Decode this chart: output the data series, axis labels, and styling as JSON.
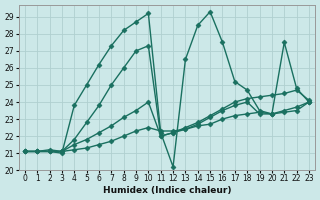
{
  "xlabel": "Humidex (Indice chaleur)",
  "bg_color": "#cce8e8",
  "grid_color": "#b0d0d0",
  "line_color": "#1a7060",
  "marker": "D",
  "markersize": 2.5,
  "linewidth": 1.0,
  "xlim": [
    -0.5,
    23.5
  ],
  "ylim": [
    20.0,
    29.7
  ],
  "yticks": [
    20,
    21,
    22,
    23,
    24,
    25,
    26,
    27,
    28,
    29
  ],
  "xticks": [
    0,
    1,
    2,
    3,
    4,
    5,
    6,
    7,
    8,
    9,
    10,
    11,
    12,
    13,
    14,
    15,
    16,
    17,
    18,
    19,
    20,
    21,
    22,
    23
  ],
  "s1_x": [
    0,
    1,
    2,
    3,
    4,
    5,
    6,
    7,
    8,
    9,
    10,
    11,
    12,
    13,
    14,
    15,
    16,
    17,
    18,
    19,
    20,
    21,
    22,
    23
  ],
  "s1_y": [
    21.1,
    21.1,
    21.1,
    21.1,
    21.2,
    21.3,
    21.5,
    21.7,
    22.0,
    22.3,
    22.5,
    22.3,
    22.3,
    22.4,
    22.6,
    22.7,
    23.0,
    23.2,
    23.3,
    23.4,
    23.3,
    23.4,
    23.5,
    24.0
  ],
  "s2_x": [
    0,
    1,
    2,
    3,
    4,
    5,
    6,
    7,
    8,
    9,
    10,
    11,
    12,
    13,
    14,
    15,
    16,
    17,
    18,
    19,
    20,
    21,
    22,
    23
  ],
  "s2_y": [
    21.1,
    21.1,
    21.2,
    21.1,
    21.8,
    22.8,
    23.8,
    25.0,
    26.0,
    27.0,
    27.3,
    22.0,
    22.2,
    22.4,
    22.7,
    23.1,
    23.5,
    23.8,
    24.0,
    23.3,
    23.3,
    23.5,
    23.7,
    24.0
  ],
  "s3_x": [
    0,
    1,
    2,
    3,
    4,
    5,
    6,
    7,
    8,
    9,
    10,
    11,
    12,
    13,
    14,
    15,
    16,
    17,
    18,
    19,
    20,
    21,
    22,
    23
  ],
  "s3_y": [
    21.1,
    21.1,
    21.1,
    21.0,
    23.8,
    25.0,
    26.2,
    27.3,
    28.2,
    28.7,
    29.2,
    22.2,
    20.2,
    26.5,
    28.5,
    29.3,
    27.5,
    25.2,
    24.7,
    23.5,
    23.3,
    27.5,
    24.8,
    24.0
  ],
  "s4_x": [
    0,
    1,
    2,
    3,
    4,
    5,
    6,
    7,
    8,
    9,
    10,
    11,
    12,
    13,
    14,
    15,
    16,
    17,
    18,
    19,
    20,
    21,
    22,
    23
  ],
  "s4_y": [
    21.1,
    21.1,
    21.1,
    21.1,
    21.5,
    21.8,
    22.2,
    22.6,
    23.1,
    23.5,
    24.0,
    22.0,
    22.2,
    22.5,
    22.8,
    23.2,
    23.6,
    24.0,
    24.2,
    24.3,
    24.4,
    24.5,
    24.7,
    24.1
  ]
}
